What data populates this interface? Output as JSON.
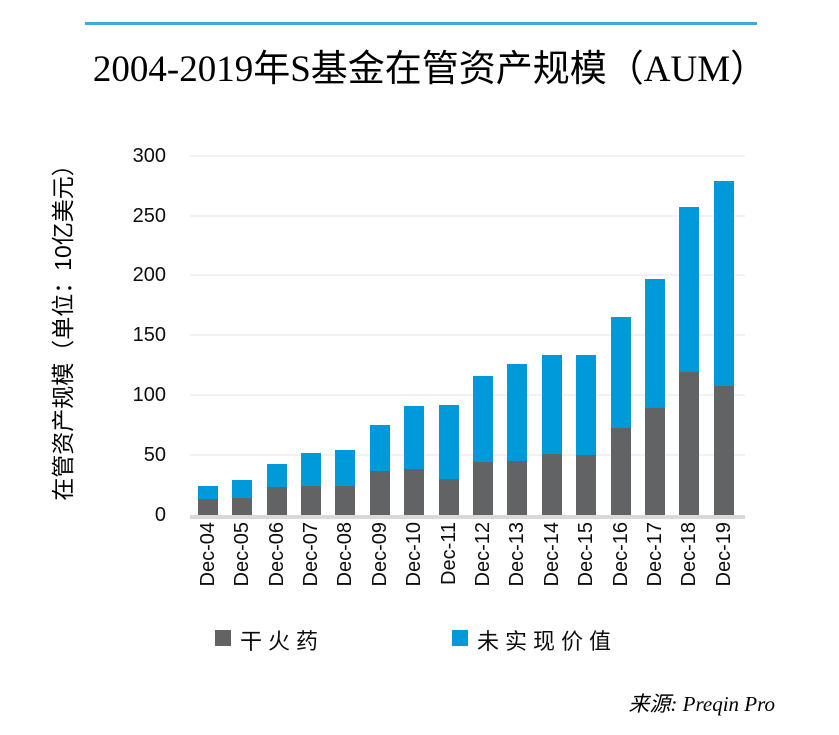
{
  "title": "2004-2019年S基金在管资产规模（AUM）",
  "source": "来源: Preqin Pro",
  "colors": {
    "accent_rule": "#3fa9dc",
    "bar_gray": "#616365",
    "bar_blue": "#0099da",
    "gridline": "#f2f2f2",
    "baseline": "#d9d9d9"
  },
  "chart_data": {
    "type": "bar",
    "stacked": true,
    "title": "2004-2019年S基金在管资产规模（AUM）",
    "ylabel": "在管资产规模（单位：10亿美元）",
    "xlabel": "",
    "categories": [
      "Dec-04",
      "Dec-05",
      "Dec-06",
      "Dec-07",
      "Dec-08",
      "Dec-09",
      "Dec-10",
      "Dec-11",
      "Dec-12",
      "Dec-13",
      "Dec-14",
      "Dec-15",
      "Dec-16",
      "Dec-17",
      "Dec-18",
      "Dec-19"
    ],
    "series": [
      {
        "name": "干火药",
        "color": "#616365",
        "values": [
          13,
          14,
          23,
          24,
          24,
          37,
          38,
          30,
          44,
          45,
          51,
          50,
          73,
          89,
          119,
          108
        ]
      },
      {
        "name": "未实现价值",
        "color": "#0099da",
        "values": [
          11,
          15,
          20,
          28,
          30,
          38,
          53,
          62,
          72,
          81,
          83,
          84,
          92,
          108,
          138,
          171
        ]
      }
    ],
    "totals": [
      24,
      29,
      43,
      52,
      54,
      75,
      91,
      92,
      116,
      126,
      134,
      134,
      165,
      197,
      257,
      279
    ],
    "ylim": [
      0,
      300
    ],
    "yticks": [
      0,
      50,
      100,
      150,
      200,
      250,
      300
    ],
    "grid": true,
    "legend_position": "bottom"
  }
}
